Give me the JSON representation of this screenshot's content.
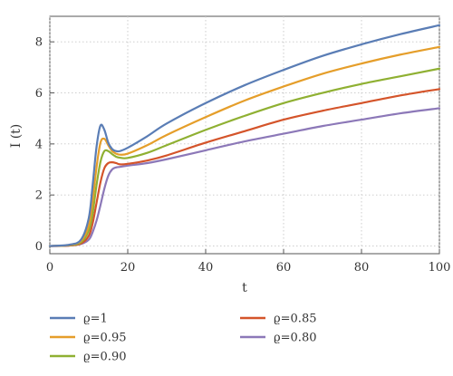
{
  "chart_data": {
    "type": "line",
    "title": "",
    "xlabel": "t",
    "ylabel": "I (t)",
    "xlim": [
      0,
      100
    ],
    "ylim": [
      -0.3,
      9
    ],
    "xticks": [
      0,
      20,
      40,
      60,
      80,
      100
    ],
    "yticks": [
      0,
      2,
      4,
      6,
      8
    ],
    "grid": true,
    "legend_position": "bottom",
    "series": [
      {
        "name": "ϱ=1",
        "color": "#5a7db5",
        "x": [
          0,
          5,
          8,
          10,
          11,
          12,
          13,
          14,
          15,
          16,
          17,
          18,
          20,
          25,
          30,
          40,
          50,
          60,
          70,
          80,
          90,
          100
        ],
        "y": [
          0.0,
          0.05,
          0.25,
          1.1,
          2.4,
          3.9,
          4.72,
          4.55,
          4.05,
          3.8,
          3.72,
          3.72,
          3.85,
          4.3,
          4.8,
          5.6,
          6.3,
          6.9,
          7.45,
          7.9,
          8.3,
          8.65
        ]
      },
      {
        "name": "ϱ=0.95",
        "color": "#e59e2a",
        "x": [
          0,
          5,
          8,
          10,
          11,
          12,
          13,
          14,
          15,
          16,
          17,
          18,
          20,
          25,
          30,
          40,
          50,
          60,
          70,
          80,
          90,
          100
        ],
        "y": [
          0.0,
          0.04,
          0.2,
          0.8,
          1.8,
          3.1,
          4.05,
          4.2,
          3.95,
          3.72,
          3.62,
          3.58,
          3.62,
          3.95,
          4.35,
          5.05,
          5.7,
          6.25,
          6.75,
          7.15,
          7.5,
          7.8
        ]
      },
      {
        "name": "ϱ=0.90",
        "color": "#8fb032",
        "x": [
          0,
          5,
          8,
          10,
          11,
          12,
          13,
          14,
          15,
          16,
          17,
          18,
          20,
          25,
          30,
          40,
          50,
          60,
          70,
          80,
          90,
          100
        ],
        "y": [
          0.0,
          0.03,
          0.15,
          0.6,
          1.3,
          2.4,
          3.3,
          3.72,
          3.72,
          3.6,
          3.5,
          3.46,
          3.45,
          3.65,
          3.95,
          4.55,
          5.1,
          5.6,
          6.0,
          6.35,
          6.65,
          6.95
        ]
      },
      {
        "name": "ϱ=0.85",
        "color": "#d4542a",
        "x": [
          0,
          5,
          8,
          10,
          11,
          12,
          13,
          14,
          15,
          16,
          17,
          18,
          20,
          25,
          30,
          40,
          50,
          60,
          70,
          80,
          90,
          100
        ],
        "y": [
          0.0,
          0.02,
          0.1,
          0.4,
          0.9,
          1.7,
          2.5,
          3.05,
          3.25,
          3.28,
          3.25,
          3.2,
          3.22,
          3.35,
          3.55,
          4.05,
          4.5,
          4.95,
          5.3,
          5.6,
          5.9,
          6.15
        ]
      },
      {
        "name": "ϱ=0.80",
        "color": "#8c78b8",
        "x": [
          0,
          5,
          8,
          10,
          11,
          12,
          13,
          14,
          15,
          16,
          17,
          18,
          20,
          25,
          30,
          40,
          50,
          60,
          70,
          80,
          90,
          100
        ],
        "y": [
          0.0,
          0.02,
          0.08,
          0.25,
          0.55,
          1.0,
          1.6,
          2.25,
          2.75,
          3.0,
          3.08,
          3.1,
          3.15,
          3.25,
          3.4,
          3.75,
          4.1,
          4.4,
          4.7,
          4.95,
          5.2,
          5.4
        ]
      }
    ]
  }
}
